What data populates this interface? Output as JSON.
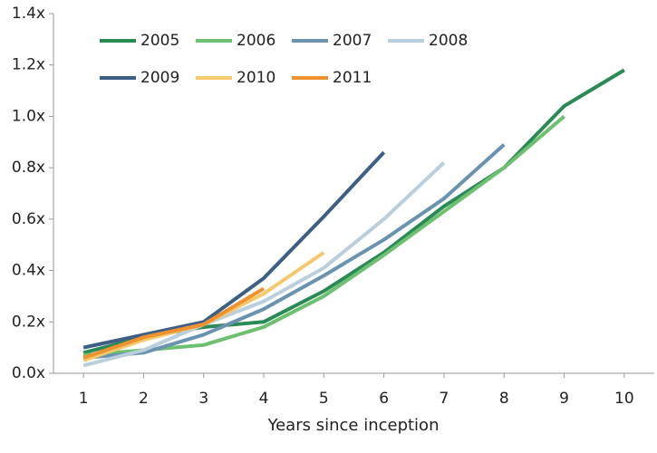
{
  "chart_data": {
    "type": "line",
    "x": [
      1,
      2,
      3,
      4,
      5,
      6,
      7,
      8,
      9,
      10
    ],
    "xlabel": "Years since inception",
    "series": [
      {
        "name": "2005",
        "color": "#2a8a55",
        "values": [
          0.08,
          0.14,
          0.18,
          0.2,
          0.32,
          0.47,
          0.65,
          0.8,
          1.04,
          1.18
        ]
      },
      {
        "name": "2006",
        "color": "#6cc070",
        "values": [
          0.07,
          0.09,
          0.11,
          0.18,
          0.3,
          0.46,
          0.63,
          0.8,
          1.0,
          null
        ]
      },
      {
        "name": "2007",
        "color": "#6a93b0",
        "values": [
          0.06,
          0.08,
          0.15,
          0.25,
          0.38,
          0.52,
          0.68,
          0.89,
          null,
          null
        ]
      },
      {
        "name": "2008",
        "color": "#b9cfdb",
        "values": [
          0.03,
          0.09,
          0.19,
          0.28,
          0.41,
          0.6,
          0.82,
          null,
          null,
          null
        ]
      },
      {
        "name": "2009",
        "color": "#3e5f85",
        "values": [
          0.1,
          0.15,
          0.2,
          0.37,
          0.61,
          0.86,
          null,
          null,
          null,
          null
        ]
      },
      {
        "name": "2010",
        "color": "#f5c86b",
        "values": [
          0.05,
          0.13,
          0.19,
          0.31,
          0.47,
          null,
          null,
          null,
          null,
          null
        ]
      },
      {
        "name": "2011",
        "color": "#f0912f",
        "values": [
          0.06,
          0.14,
          0.19,
          0.33,
          null,
          null,
          null,
          null,
          null,
          null
        ]
      }
    ],
    "xlim": [
      0.5,
      10.5
    ],
    "xticks": [
      1,
      2,
      3,
      4,
      5,
      6,
      7,
      8,
      9,
      10
    ],
    "ylim": [
      0,
      1.4
    ],
    "yticks": [
      {
        "value": 0,
        "label": "0.0x"
      },
      {
        "value": 0.2,
        "label": "0.2x"
      },
      {
        "value": 0.4,
        "label": "0.4x"
      },
      {
        "value": 0.6,
        "label": "0.6x"
      },
      {
        "value": 0.8,
        "label": "0.8x"
      },
      {
        "value": 1.0,
        "label": "1.0x"
      },
      {
        "value": 1.2,
        "label": "1.2x"
      },
      {
        "value": 1.4,
        "label": "1.4x"
      }
    ],
    "grid": false,
    "legend": "top-left"
  }
}
